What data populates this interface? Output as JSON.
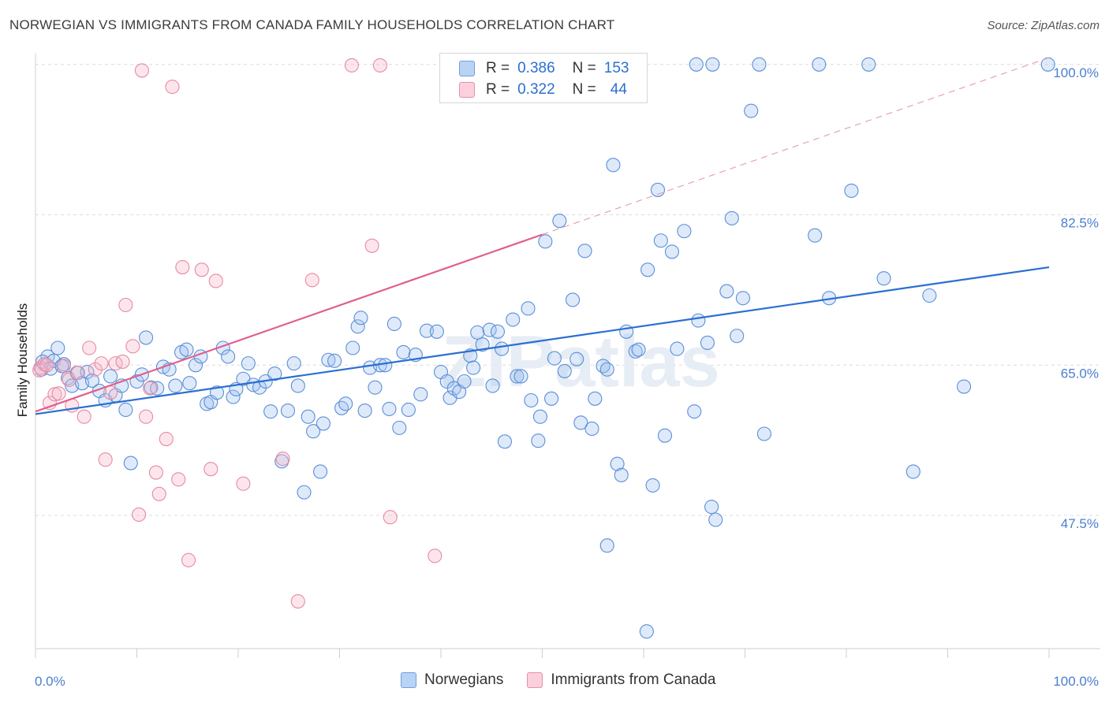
{
  "title": "NORWEGIAN VS IMMIGRANTS FROM CANADA FAMILY HOUSEHOLDS CORRELATION CHART",
  "source": "Source: ZipAtlas.com",
  "watermark": "ZIPatlas",
  "legend_top": {
    "rows": [
      {
        "r_label": "R =",
        "r_value": "0.386",
        "n_label": "N =",
        "n_value": "153",
        "color": "#a8c8f0"
      },
      {
        "r_label": "R =",
        "r_value": "0.322",
        "n_label": "N =",
        "n_value": "44",
        "color": "#f7b8c8"
      }
    ]
  },
  "legend_bottom": {
    "items": [
      {
        "label": "Norwegians",
        "color": "#a8c8f0"
      },
      {
        "label": "Immigrants from Canada",
        "color": "#f7b8c8"
      }
    ]
  },
  "chart_data": {
    "type": "scatter",
    "ylabel": "Family Households",
    "xlabel": "",
    "xlim": [
      0,
      100
    ],
    "ylim": [
      32,
      102
    ],
    "x_tick_labels": [
      "0.0%",
      "100.0%"
    ],
    "y_ticks": [
      {
        "value": 47.5,
        "label": "47.5%"
      },
      {
        "value": 65.0,
        "label": "65.0%"
      },
      {
        "value": 82.5,
        "label": "82.5%"
      },
      {
        "value": 100.0,
        "label": "100.0%"
      }
    ],
    "grid": true,
    "series": [
      {
        "name": "Norwegians",
        "stroke": "#5b8fd6",
        "fill": "rgba(160,196,240,0.35)",
        "trend": {
          "x": [
            0,
            100
          ],
          "y": [
            59.3,
            76.4
          ],
          "color": "#2a6fd1"
        },
        "points": [
          [
            0.6,
            64.5
          ],
          [
            1.2,
            66.0
          ],
          [
            1.8,
            65.5
          ],
          [
            2.2,
            67.0
          ],
          [
            2.8,
            65.1
          ],
          [
            3.2,
            63.5
          ],
          [
            3.6,
            62.6
          ],
          [
            4.1,
            64.1
          ],
          [
            4.6,
            62.9
          ],
          [
            5.1,
            64.2
          ],
          [
            5.6,
            63.2
          ],
          [
            6.3,
            62.0
          ],
          [
            6.9,
            60.9
          ],
          [
            7.4,
            63.7
          ],
          [
            7.9,
            61.5
          ],
          [
            8.5,
            62.6
          ],
          [
            8.9,
            59.8
          ],
          [
            9.4,
            53.6
          ],
          [
            10.0,
            63.1
          ],
          [
            10.5,
            63.9
          ],
          [
            10.9,
            68.2
          ],
          [
            11.4,
            62.4
          ],
          [
            12.0,
            62.3
          ],
          [
            12.6,
            64.8
          ],
          [
            13.2,
            64.5
          ],
          [
            13.8,
            62.6
          ],
          [
            14.4,
            66.5
          ],
          [
            14.9,
            66.8
          ],
          [
            15.2,
            62.9
          ],
          [
            15.8,
            65.0
          ],
          [
            16.3,
            66.0
          ],
          [
            16.9,
            60.5
          ],
          [
            17.3,
            60.7
          ],
          [
            17.9,
            61.8
          ],
          [
            18.5,
            67.0
          ],
          [
            19.0,
            66.0
          ],
          [
            19.5,
            61.3
          ],
          [
            19.8,
            62.2
          ],
          [
            20.5,
            63.4
          ],
          [
            21.0,
            65.2
          ],
          [
            21.5,
            62.7
          ],
          [
            22.1,
            62.4
          ],
          [
            22.7,
            63.1
          ],
          [
            23.2,
            59.6
          ],
          [
            23.6,
            64.0
          ],
          [
            24.3,
            53.8
          ],
          [
            24.9,
            59.7
          ],
          [
            25.5,
            65.2
          ],
          [
            25.9,
            62.6
          ],
          [
            26.5,
            50.2
          ],
          [
            26.9,
            59.0
          ],
          [
            27.4,
            57.3
          ],
          [
            28.1,
            52.6
          ],
          [
            28.4,
            58.2
          ],
          [
            28.9,
            65.6
          ],
          [
            29.5,
            65.5
          ],
          [
            30.2,
            60.0
          ],
          [
            30.6,
            60.5
          ],
          [
            31.3,
            67.0
          ],
          [
            31.8,
            69.5
          ],
          [
            32.1,
            70.5
          ],
          [
            32.5,
            59.7
          ],
          [
            33.0,
            64.7
          ],
          [
            33.5,
            62.4
          ],
          [
            34.0,
            65.0
          ],
          [
            34.5,
            65.0
          ],
          [
            34.9,
            59.9
          ],
          [
            35.4,
            69.8
          ],
          [
            35.9,
            57.7
          ],
          [
            36.3,
            66.5
          ],
          [
            36.8,
            59.8
          ],
          [
            37.5,
            66.2
          ],
          [
            38.0,
            61.6
          ],
          [
            38.6,
            69.0
          ],
          [
            39.6,
            68.9
          ],
          [
            40.0,
            64.2
          ],
          [
            40.6,
            63.1
          ],
          [
            40.9,
            61.2
          ],
          [
            41.3,
            62.3
          ],
          [
            41.8,
            61.9
          ],
          [
            42.3,
            63.1
          ],
          [
            42.9,
            66.1
          ],
          [
            43.2,
            64.7
          ],
          [
            43.6,
            68.8
          ],
          [
            44.1,
            67.4
          ],
          [
            44.8,
            69.1
          ],
          [
            45.1,
            62.6
          ],
          [
            45.6,
            68.9
          ],
          [
            46.0,
            66.9
          ],
          [
            46.3,
            56.1
          ],
          [
            47.1,
            70.3
          ],
          [
            47.5,
            63.7
          ],
          [
            47.9,
            63.7
          ],
          [
            48.6,
            71.6
          ],
          [
            48.9,
            60.9
          ],
          [
            49.6,
            56.2
          ],
          [
            49.8,
            59.0
          ],
          [
            50.3,
            79.4
          ],
          [
            50.9,
            61.1
          ],
          [
            51.2,
            65.8
          ],
          [
            51.7,
            81.8
          ],
          [
            52.2,
            64.3
          ],
          [
            53.0,
            72.6
          ],
          [
            53.4,
            65.7
          ],
          [
            53.8,
            58.3
          ],
          [
            54.2,
            78.3
          ],
          [
            54.9,
            57.6
          ],
          [
            55.2,
            61.1
          ],
          [
            56.0,
            64.9
          ],
          [
            56.4,
            64.5
          ],
          [
            57.0,
            88.3
          ],
          [
            57.4,
            53.5
          ],
          [
            57.8,
            52.2
          ],
          [
            58.3,
            68.9
          ],
          [
            59.2,
            66.6
          ],
          [
            59.5,
            66.8
          ],
          [
            60.4,
            76.1
          ],
          [
            60.9,
            51.0
          ],
          [
            61.4,
            85.4
          ],
          [
            61.7,
            79.5
          ],
          [
            62.1,
            56.8
          ],
          [
            62.8,
            78.2
          ],
          [
            63.3,
            66.9
          ],
          [
            64.0,
            80.6
          ],
          [
            65.0,
            59.6
          ],
          [
            65.4,
            70.2
          ],
          [
            66.3,
            67.6
          ],
          [
            66.7,
            48.5
          ],
          [
            67.1,
            47.0
          ],
          [
            68.2,
            73.6
          ],
          [
            68.7,
            82.1
          ],
          [
            69.2,
            68.4
          ],
          [
            69.8,
            72.8
          ],
          [
            70.6,
            94.6
          ],
          [
            71.9,
            57.0
          ],
          [
            76.9,
            80.1
          ],
          [
            78.3,
            72.8
          ],
          [
            80.5,
            85.3
          ],
          [
            83.7,
            75.1
          ],
          [
            86.6,
            52.6
          ],
          [
            88.2,
            73.1
          ],
          [
            91.6,
            62.5
          ],
          [
            65.2,
            100.0
          ],
          [
            66.8,
            100.0
          ],
          [
            71.4,
            100.0
          ],
          [
            77.3,
            100.0
          ],
          [
            82.2,
            100.0
          ],
          [
            99.9,
            100.0
          ],
          [
            56.4,
            44.0
          ],
          [
            60.3,
            34.0
          ],
          [
            0.7,
            65.4
          ],
          [
            1.5,
            64.6
          ],
          [
            2.6,
            64.9
          ]
        ]
      },
      {
        "name": "Immigrants from Canada",
        "stroke": "#e68aa6",
        "fill": "rgba(247,184,200,0.35)",
        "trend": {
          "x": [
            0,
            50
          ],
          "y": [
            59.6,
            80.2
          ],
          "color": "#e05e8a"
        },
        "trend_dashed": {
          "x": [
            50,
            100
          ],
          "y": [
            80.2,
            100.8
          ],
          "color": "#e8a0b6"
        },
        "points": [
          [
            0.5,
            64.7
          ],
          [
            0.9,
            65.1
          ],
          [
            1.4,
            60.6
          ],
          [
            1.9,
            61.6
          ],
          [
            2.3,
            61.7
          ],
          [
            2.8,
            64.9
          ],
          [
            3.3,
            63.3
          ],
          [
            3.6,
            60.3
          ],
          [
            4.2,
            64.1
          ],
          [
            4.8,
            59.0
          ],
          [
            5.3,
            67.0
          ],
          [
            5.9,
            64.5
          ],
          [
            6.5,
            65.2
          ],
          [
            6.9,
            54.0
          ],
          [
            7.4,
            61.8
          ],
          [
            7.9,
            65.2
          ],
          [
            8.6,
            65.4
          ],
          [
            8.9,
            72.0
          ],
          [
            9.6,
            67.2
          ],
          [
            10.2,
            47.6
          ],
          [
            10.9,
            59.0
          ],
          [
            11.3,
            62.3
          ],
          [
            11.9,
            52.5
          ],
          [
            12.2,
            50.0
          ],
          [
            12.9,
            56.4
          ],
          [
            13.5,
            97.4
          ],
          [
            14.1,
            51.7
          ],
          [
            14.5,
            76.4
          ],
          [
            15.1,
            42.3
          ],
          [
            16.4,
            76.1
          ],
          [
            17.3,
            52.9
          ],
          [
            17.8,
            74.8
          ],
          [
            20.5,
            51.2
          ],
          [
            24.4,
            54.1
          ],
          [
            25.9,
            37.5
          ],
          [
            27.3,
            74.9
          ],
          [
            31.2,
            99.9
          ],
          [
            33.2,
            78.9
          ],
          [
            34.0,
            99.9
          ],
          [
            35.0,
            47.3
          ],
          [
            39.4,
            42.8
          ],
          [
            10.5,
            99.3
          ],
          [
            0.4,
            64.4
          ],
          [
            1.1,
            65.0
          ]
        ]
      }
    ]
  }
}
